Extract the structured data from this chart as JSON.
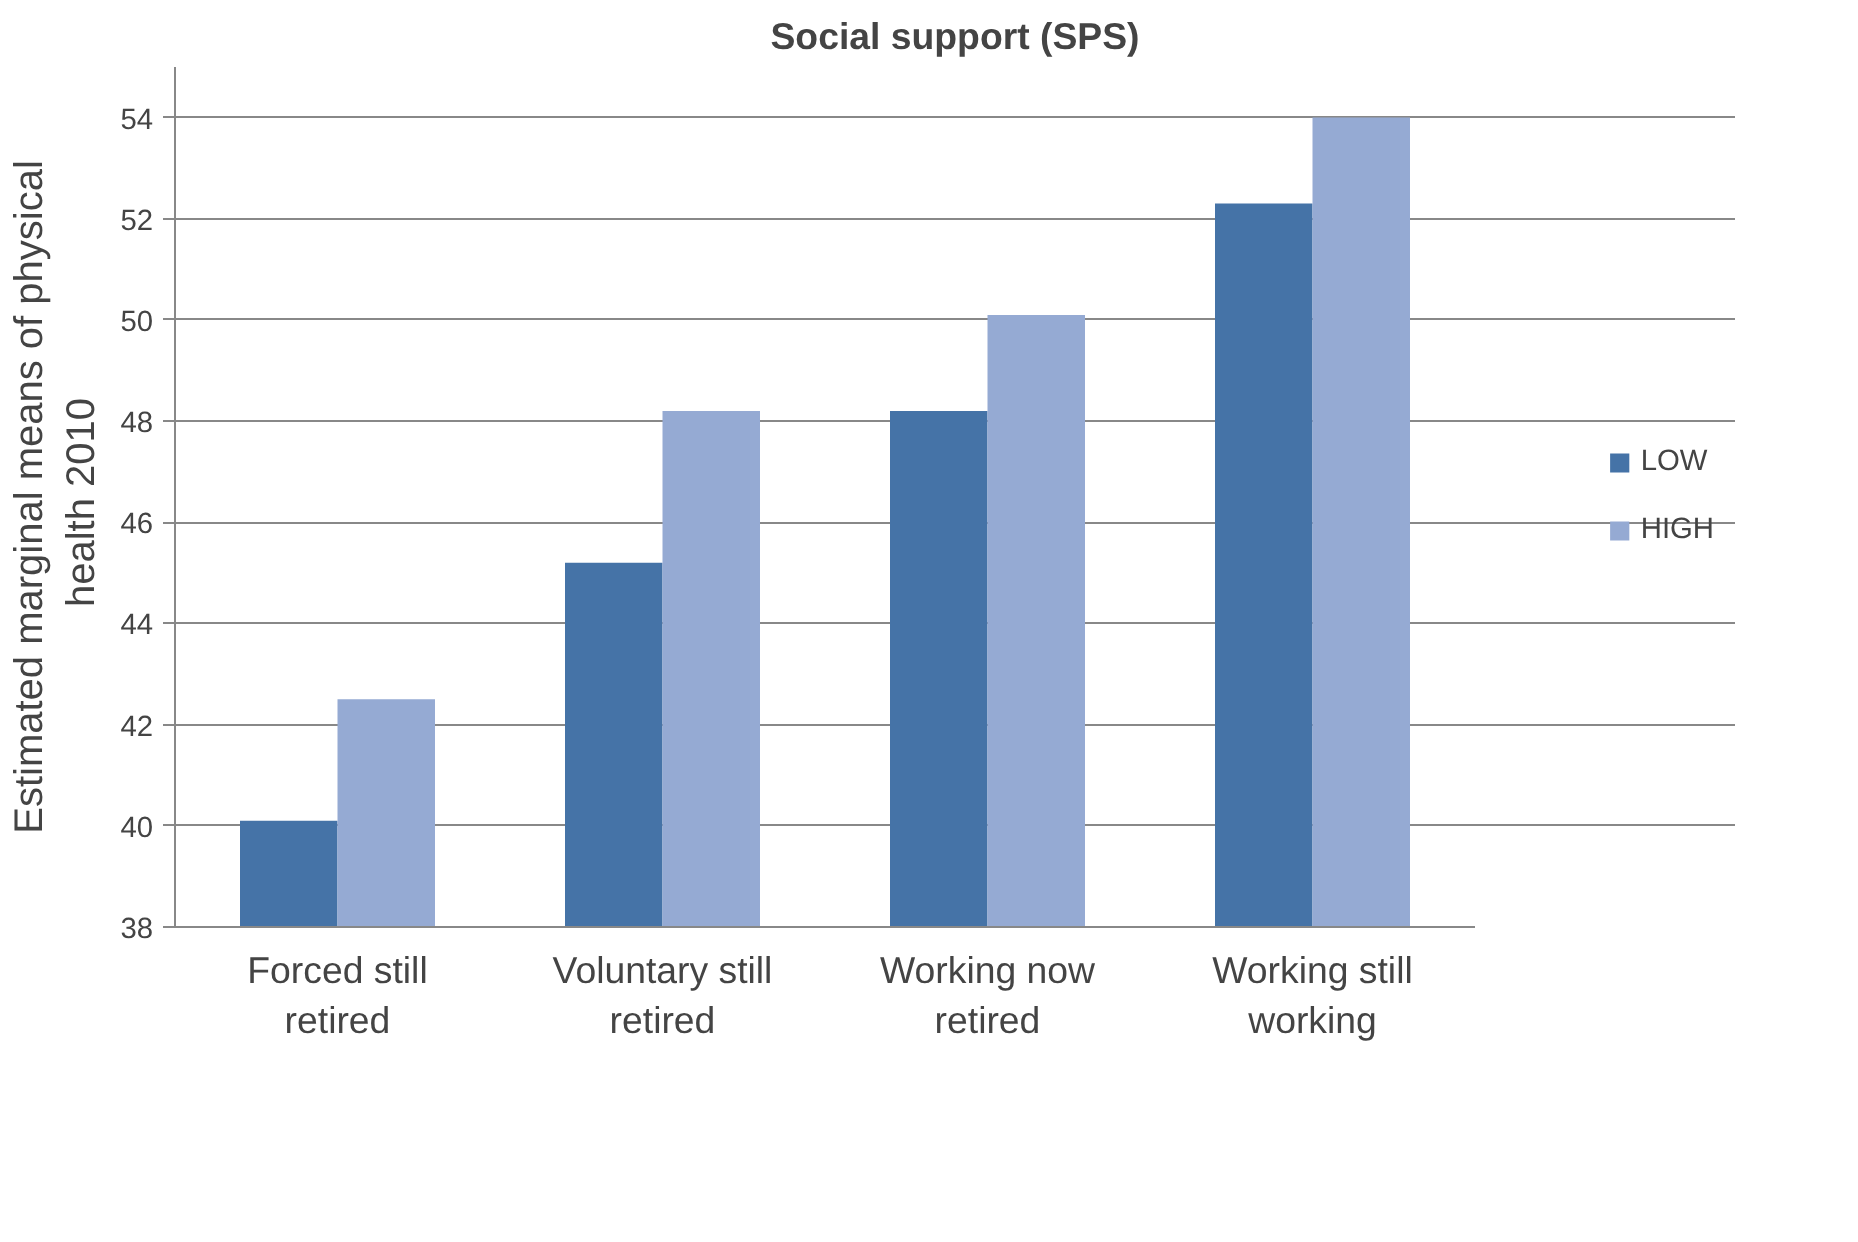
{
  "chart_data": {
    "type": "bar",
    "title": "Social support (SPS)",
    "ylabel": "Estimated marginal means of physical health  2010",
    "categories": [
      "Forced still retired",
      "Voluntary still retired",
      "Working now retired",
      "Working still working"
    ],
    "series": [
      {
        "name": "LOW",
        "color": "#4573a7",
        "values": [
          40.1,
          45.2,
          48.2,
          52.3
        ]
      },
      {
        "name": "HIGH",
        "color": "#95aad3",
        "values": [
          42.5,
          48.2,
          50.1,
          54.0
        ]
      }
    ],
    "ylim": [
      38,
      55
    ],
    "yticks": [
      38,
      40,
      42,
      44,
      46,
      48,
      50,
      52,
      54
    ],
    "grid": "y",
    "legend": "right"
  }
}
